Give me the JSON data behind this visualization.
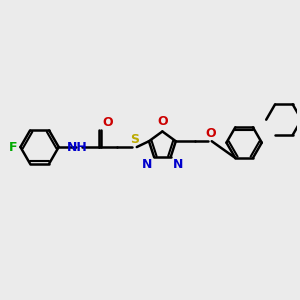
{
  "bg_color": "#ebebeb",
  "bond_color": "#000000",
  "N_color": "#0000cc",
  "O_color": "#cc0000",
  "S_color": "#bbaa00",
  "F_color": "#00aa00",
  "line_width": 1.8,
  "font_size": 9,
  "figsize": [
    3.0,
    3.0
  ],
  "dpi": 100,
  "xlim": [
    0,
    10
  ],
  "ylim": [
    0,
    10
  ]
}
